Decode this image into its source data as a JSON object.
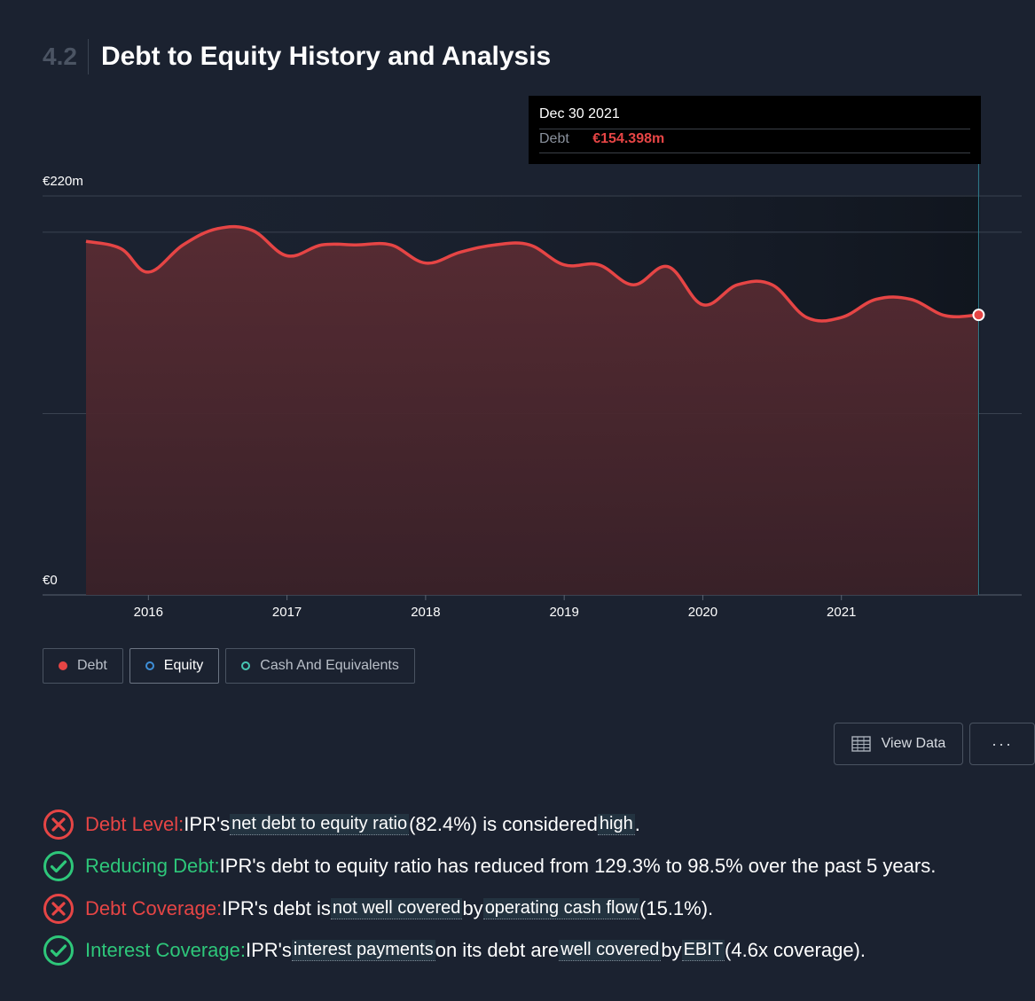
{
  "header": {
    "section_number": "4.2",
    "title": "Debt to Equity History and Analysis"
  },
  "tooltip": {
    "date": "Dec 30 2021",
    "label": "Debt",
    "value": "€154.398m"
  },
  "chart_data": {
    "type": "area",
    "title": "Debt to Equity History and Analysis",
    "y_unit": "€m",
    "ylim": [
      0,
      220
    ],
    "ytick_labels": [
      {
        "value": 220,
        "label": "€220m"
      },
      {
        "value": 0,
        "label": "€0"
      }
    ],
    "gridlines_y": [
      220,
      200,
      100,
      0
    ],
    "xlim": [
      2015.55,
      2022.0
    ],
    "xtick_labels": [
      {
        "value": 2016,
        "label": "2016"
      },
      {
        "value": 2017,
        "label": "2017"
      },
      {
        "value": 2018,
        "label": "2018"
      },
      {
        "value": 2019,
        "label": "2019"
      },
      {
        "value": 2020,
        "label": "2020"
      },
      {
        "value": 2021,
        "label": "2021"
      }
    ],
    "series": [
      {
        "name": "Debt",
        "color": "#e64545",
        "x": [
          2015.55,
          2015.8,
          2016.0,
          2016.25,
          2016.5,
          2016.75,
          2017.0,
          2017.25,
          2017.5,
          2017.75,
          2018.0,
          2018.25,
          2018.5,
          2018.75,
          2019.0,
          2019.25,
          2019.5,
          2019.75,
          2020.0,
          2020.25,
          2020.5,
          2020.75,
          2021.0,
          2021.25,
          2021.5,
          2021.75,
          2021.99
        ],
        "y": [
          195,
          191,
          178,
          193,
          202,
          201,
          187,
          193,
          193,
          193,
          183,
          189,
          193,
          193,
          182,
          182,
          171,
          181,
          160,
          171,
          171,
          153,
          153,
          163,
          163,
          154,
          154.398
        ]
      }
    ],
    "hover": {
      "x": 2021.99,
      "y": 154.398,
      "label": "Dec 30 2021"
    },
    "legend": [
      {
        "name": "Debt",
        "color": "#e64545",
        "filled": true
      },
      {
        "name": "Equity",
        "color": "#3e8fd8",
        "filled": false
      },
      {
        "name": "Cash And Equivalents",
        "color": "#47c7b3",
        "filled": false
      }
    ],
    "legend_position": "bottom-left",
    "grid": true
  },
  "buttons": {
    "view_data": "View Data",
    "more": "···"
  },
  "checks": [
    {
      "status": "fail",
      "label": "Debt Level:",
      "parts": [
        {
          "t": " IPR's "
        },
        {
          "t": "net debt to equity ratio",
          "hl": true
        },
        {
          "t": " (82.4%) is considered "
        },
        {
          "t": "high",
          "hl": true
        },
        {
          "t": "."
        }
      ]
    },
    {
      "status": "pass",
      "label": "Reducing Debt:",
      "parts": [
        {
          "t": " IPR's debt to equity ratio has reduced from 129.3% to 98.5% over the past 5 years."
        }
      ]
    },
    {
      "status": "fail",
      "label": "Debt Coverage:",
      "parts": [
        {
          "t": " IPR's debt is "
        },
        {
          "t": "not well covered",
          "hl": true
        },
        {
          "t": " by "
        },
        {
          "t": "operating cash flow",
          "hl": true
        },
        {
          "t": " (15.1%)."
        }
      ]
    },
    {
      "status": "pass",
      "label": "Interest Coverage:",
      "parts": [
        {
          "t": " IPR's "
        },
        {
          "t": "interest payments",
          "hl": true
        },
        {
          "t": " on its debt are "
        },
        {
          "t": "well covered",
          "hl": true
        },
        {
          "t": " by "
        },
        {
          "t": "EBIT",
          "hl": true
        },
        {
          "t": " (4.6x coverage)."
        }
      ]
    }
  ]
}
